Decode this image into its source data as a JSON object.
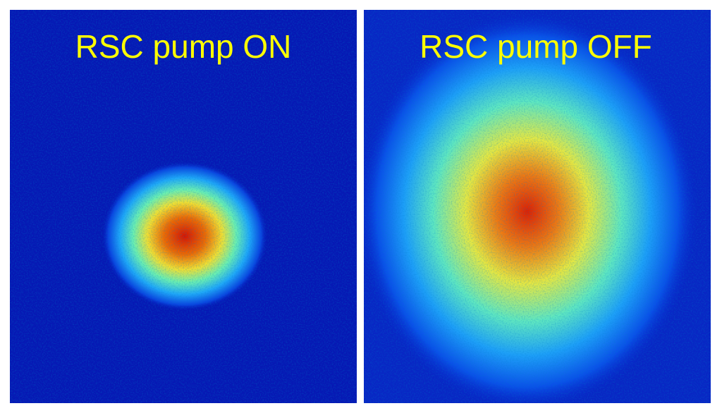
{
  "panels": [
    {
      "label": "RSC pump ON"
    },
    {
      "label": "RSC pump OFF"
    }
  ]
}
